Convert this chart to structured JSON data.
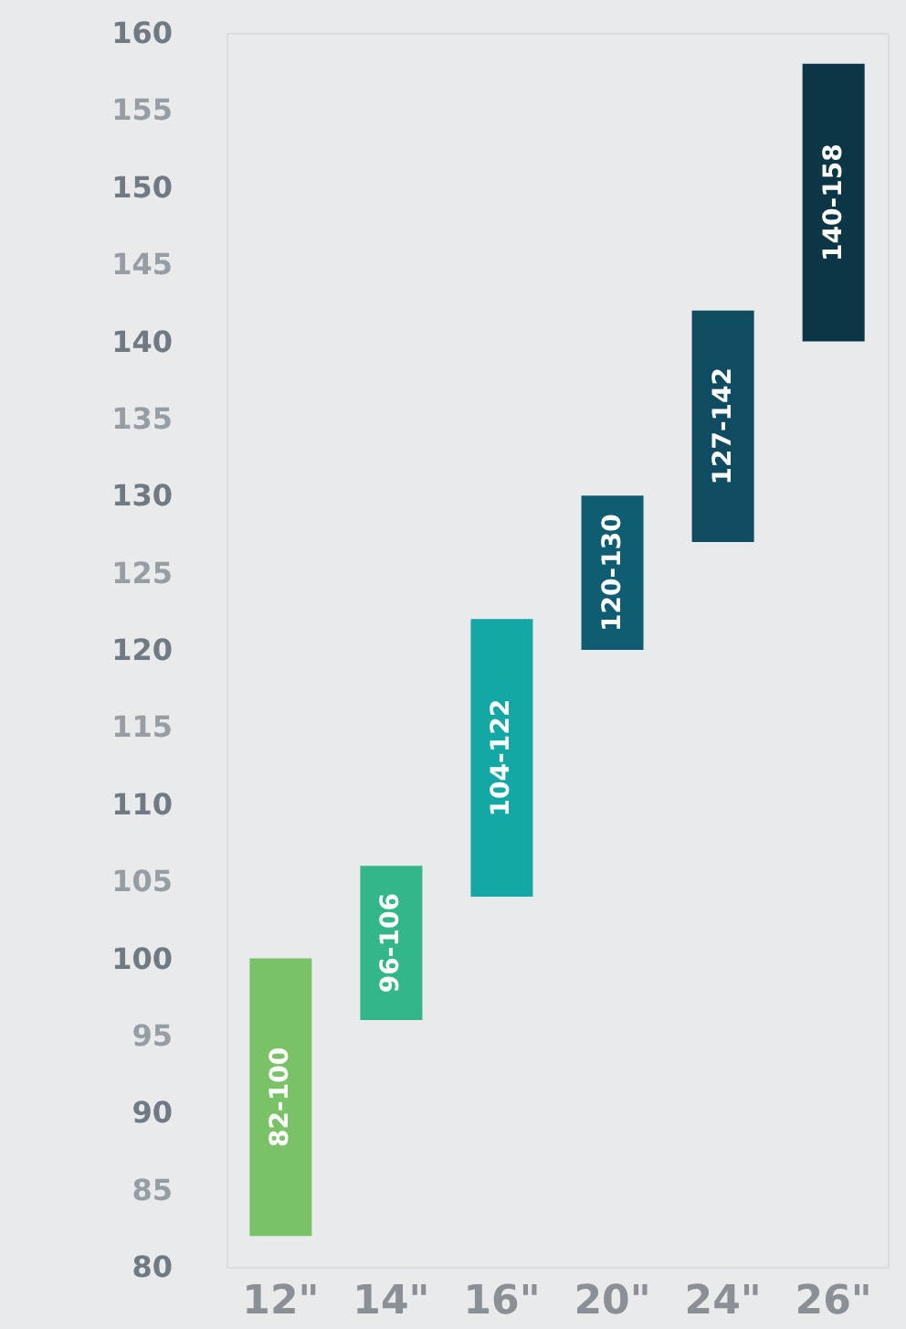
{
  "chart_data": {
    "type": "bar",
    "categories": [
      "12\"",
      "14\"",
      "16\"",
      "20\"",
      "24\"",
      "26\""
    ],
    "base": [
      82,
      96,
      104,
      120,
      127,
      140
    ],
    "values": [
      18,
      10,
      18,
      10,
      15,
      18
    ],
    "colors": [
      "#79c267",
      "#33b68a",
      "#13a8a5",
      "#0e5d72",
      "#0f4c62",
      "#0c3546"
    ],
    "value_labels": [
      "82-100",
      "96-106",
      "104-122",
      "120-130",
      "127-142",
      "140-158"
    ],
    "ylim": [
      80,
      160
    ],
    "yticks": [
      80,
      85,
      90,
      95,
      100,
      105,
      110,
      115,
      120,
      125,
      130,
      135,
      140,
      145,
      150,
      155,
      160
    ],
    "grid": false
  }
}
